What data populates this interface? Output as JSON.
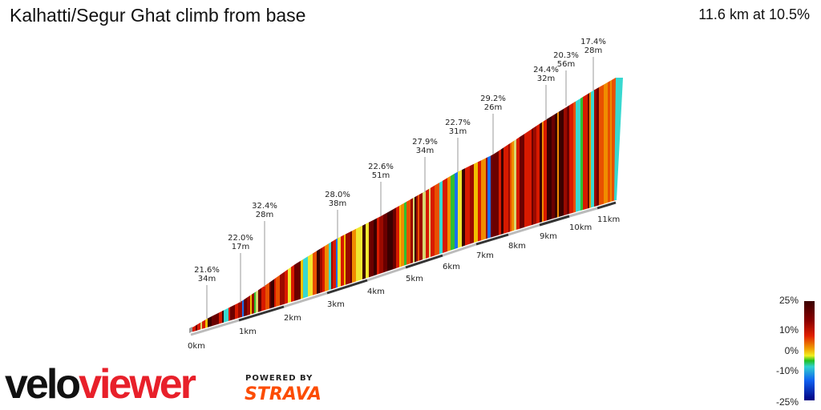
{
  "header": {
    "title": "Kalhatti/Segur Ghat climb from base",
    "summary": "11.6 km at 10.5%"
  },
  "chart_data": {
    "type": "3d-gradient-profile",
    "x_ticks": [
      "0km",
      "1km",
      "2km",
      "3km",
      "4km",
      "5km",
      "6km",
      "7km",
      "8km",
      "9km",
      "10km",
      "11km"
    ],
    "annotations": [
      {
        "pct": "21.6%",
        "len": "34m"
      },
      {
        "pct": "22.0%",
        "len": "17m"
      },
      {
        "pct": "32.4%",
        "len": "28m"
      },
      {
        "pct": "28.0%",
        "len": "38m"
      },
      {
        "pct": "22.6%",
        "len": "51m"
      },
      {
        "pct": "27.9%",
        "len": "34m"
      },
      {
        "pct": "22.7%",
        "len": "31m"
      },
      {
        "pct": "29.2%",
        "len": "26m"
      },
      {
        "pct": "24.4%",
        "len": "32m"
      },
      {
        "pct": "20.3%",
        "len": "56m"
      },
      {
        "pct": "17.4%",
        "len": "28m"
      }
    ],
    "legend": {
      "labels": [
        "25%",
        "10%",
        "0%",
        "-10%",
        "-25%"
      ]
    },
    "palette": [
      "#3a0000",
      "#6b0000",
      "#9b0a00",
      "#d81a00",
      "#e85000",
      "#f08c00",
      "#f0c000",
      "#f0e830",
      "#d8d870",
      "#30c030",
      "#38d8d0",
      "#1870f0"
    ]
  },
  "branding": {
    "logo_a": "velo",
    "logo_b": "viewer",
    "powered": "POWERED BY",
    "strava": "STRAVA"
  }
}
